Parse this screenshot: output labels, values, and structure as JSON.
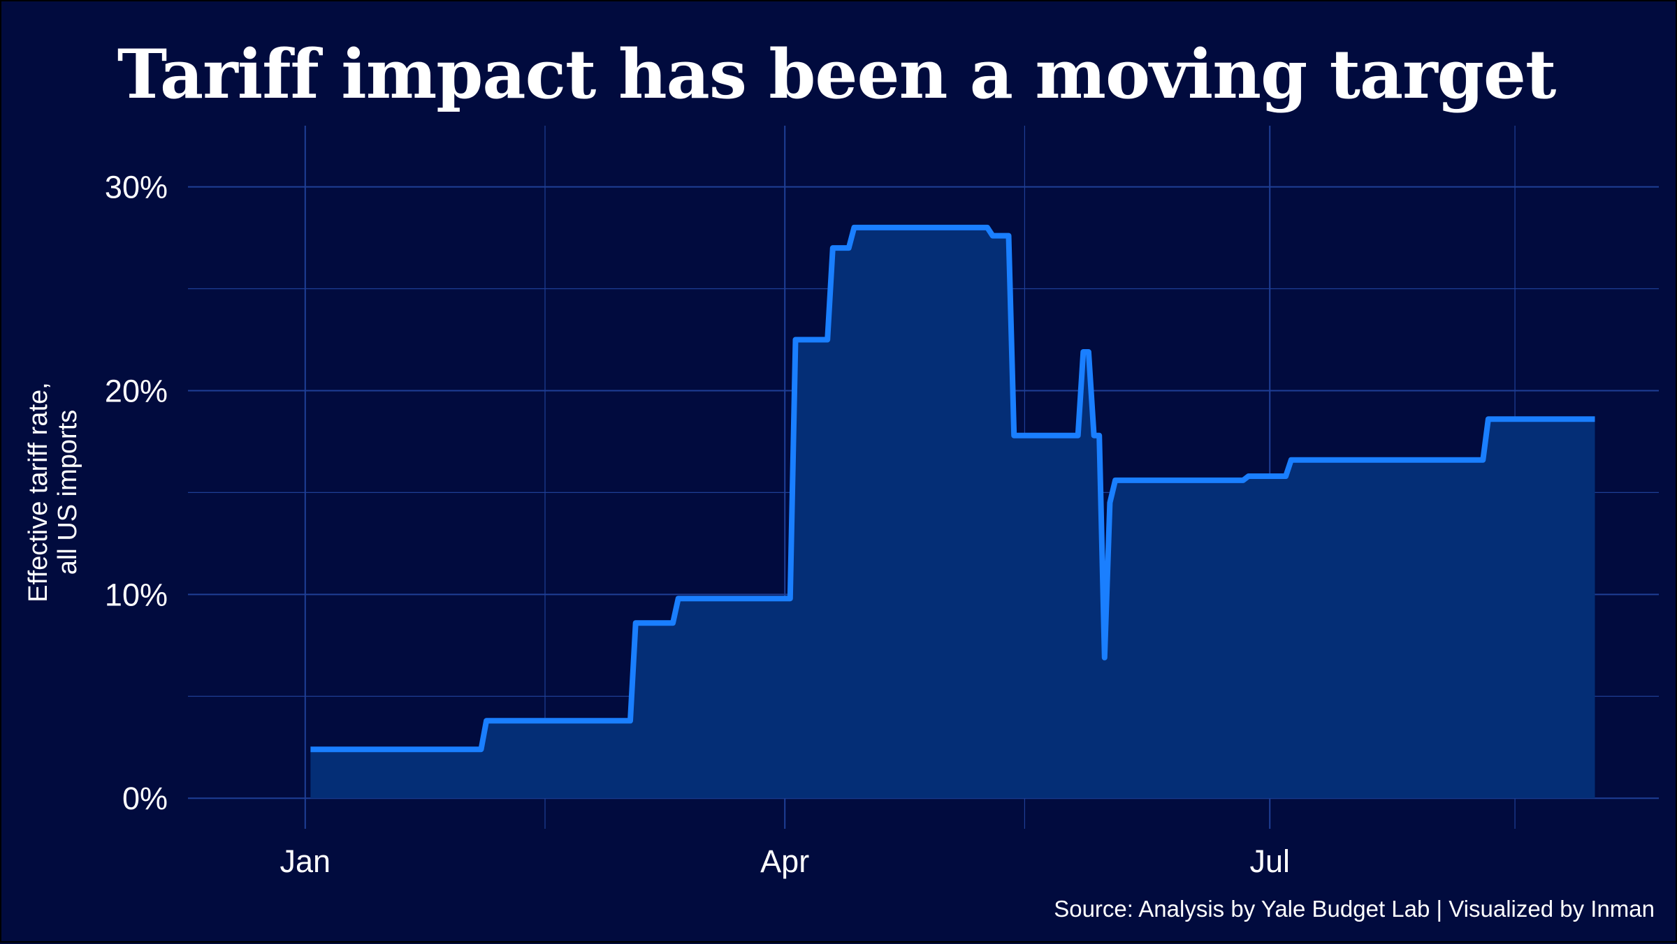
{
  "chart_data": {
    "type": "area",
    "title": "Tariff impact has been a moving target",
    "ylabel": "Effective tariff rate,\nall US imports",
    "ylabel_lines": [
      "Effective tariff rate,",
      "all US imports"
    ],
    "source": "Source: Analysis by Yale Budget Lab | Visualized by Inman",
    "x_ticks": [
      {
        "label": "Jan",
        "day": 0
      },
      {
        "label": "Apr",
        "day": 90
      },
      {
        "label": "Jul",
        "day": 181
      }
    ],
    "x_minor_days": [
      45,
      135,
      227
    ],
    "xlim_days": [
      -22,
      254
    ],
    "y_ticks": [
      {
        "label": "0%",
        "value": 0
      },
      {
        "label": "10%",
        "value": 10
      },
      {
        "label": "20%",
        "value": 20
      },
      {
        "label": "30%",
        "value": 30
      }
    ],
    "y_minor": [
      5,
      15,
      25
    ],
    "ylim": [
      -1.5,
      33
    ],
    "grid": true,
    "colors": {
      "line": "#1a7fff",
      "fill": "#042e76",
      "grid": "#1f3f96",
      "background": "#010b3e"
    },
    "series": [
      {
        "x": [
          "2025-01-02",
          "2025-02-03",
          "2025-02-04",
          "2025-03-03",
          "2025-03-04",
          "2025-03-11",
          "2025-03-12",
          "2025-04-02",
          "2025-04-03",
          "2025-04-09",
          "2025-04-10",
          "2025-04-13",
          "2025-04-14",
          "2025-05-09",
          "2025-05-10",
          "2025-05-13",
          "2025-05-14",
          "2025-05-26",
          "2025-05-27",
          "2025-05-28",
          "2025-05-29",
          "2025-05-30",
          "2025-05-31",
          "2025-06-01",
          "2025-06-02",
          "2025-06-03",
          "2025-06-04",
          "2025-06-05",
          "2025-06-26",
          "2025-06-27",
          "2025-07-04",
          "2025-07-05",
          "2025-08-10",
          "2025-08-11",
          "2025-08-31"
        ],
        "y": [
          2.4,
          2.4,
          3.8,
          3.8,
          8.6,
          8.6,
          9.8,
          9.8,
          22.5,
          22.5,
          27.0,
          27.0,
          28.0,
          28.0,
          27.6,
          27.6,
          17.8,
          17.8,
          21.9,
          21.9,
          17.8,
          17.8,
          6.9,
          14.5,
          15.6,
          15.6,
          15.6,
          15.6,
          15.6,
          15.8,
          15.8,
          16.6,
          16.6,
          18.6,
          18.6
        ]
      }
    ]
  }
}
